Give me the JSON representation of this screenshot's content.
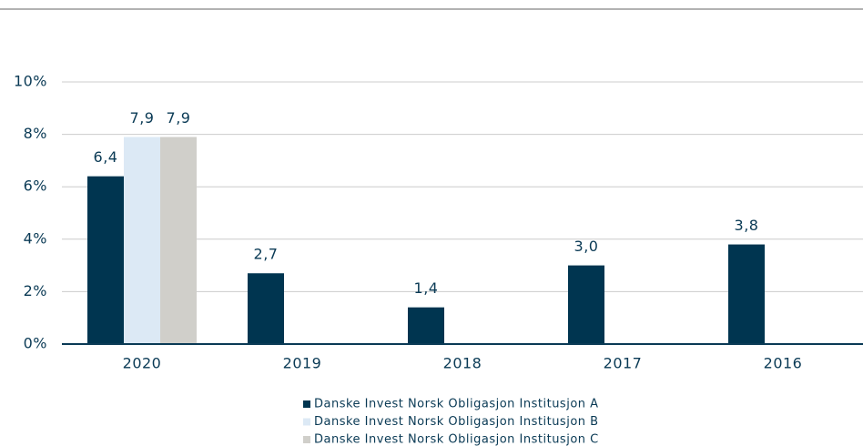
{
  "chart_data": {
    "type": "bar",
    "categories": [
      "2020",
      "2019",
      "2018",
      "2017",
      "2016"
    ],
    "series": [
      {
        "name": "Danske Invest Norsk Obligasjon Institusjon A",
        "color": "#003550",
        "values": [
          6.4,
          2.7,
          1.4,
          3.0,
          3.8
        ],
        "value_labels": [
          "6,4",
          "2,7",
          "1,4",
          "3,0",
          "3,8"
        ]
      },
      {
        "name": "Danske Invest Norsk Obligasjon Institusjon B",
        "color": "#dce9f5",
        "values": [
          7.9,
          null,
          null,
          null,
          null
        ],
        "value_labels": [
          "7,9",
          null,
          null,
          null,
          null
        ]
      },
      {
        "name": "Danske Invest Norsk Obligasjon Institusjon C",
        "color": "#d0cfca",
        "values": [
          7.9,
          null,
          null,
          null,
          null
        ],
        "value_labels": [
          "7,9",
          null,
          null,
          null,
          null
        ]
      }
    ],
    "ylim": [
      0,
      10
    ],
    "yticks": [
      {
        "value": 0,
        "label": "0%"
      },
      {
        "value": 2,
        "label": "2%"
      },
      {
        "value": 4,
        "label": "4%"
      },
      {
        "value": 6,
        "label": "6%"
      },
      {
        "value": 8,
        "label": "8%"
      },
      {
        "value": 10,
        "label": "10%"
      }
    ],
    "grid": true,
    "legend": "bottom"
  }
}
